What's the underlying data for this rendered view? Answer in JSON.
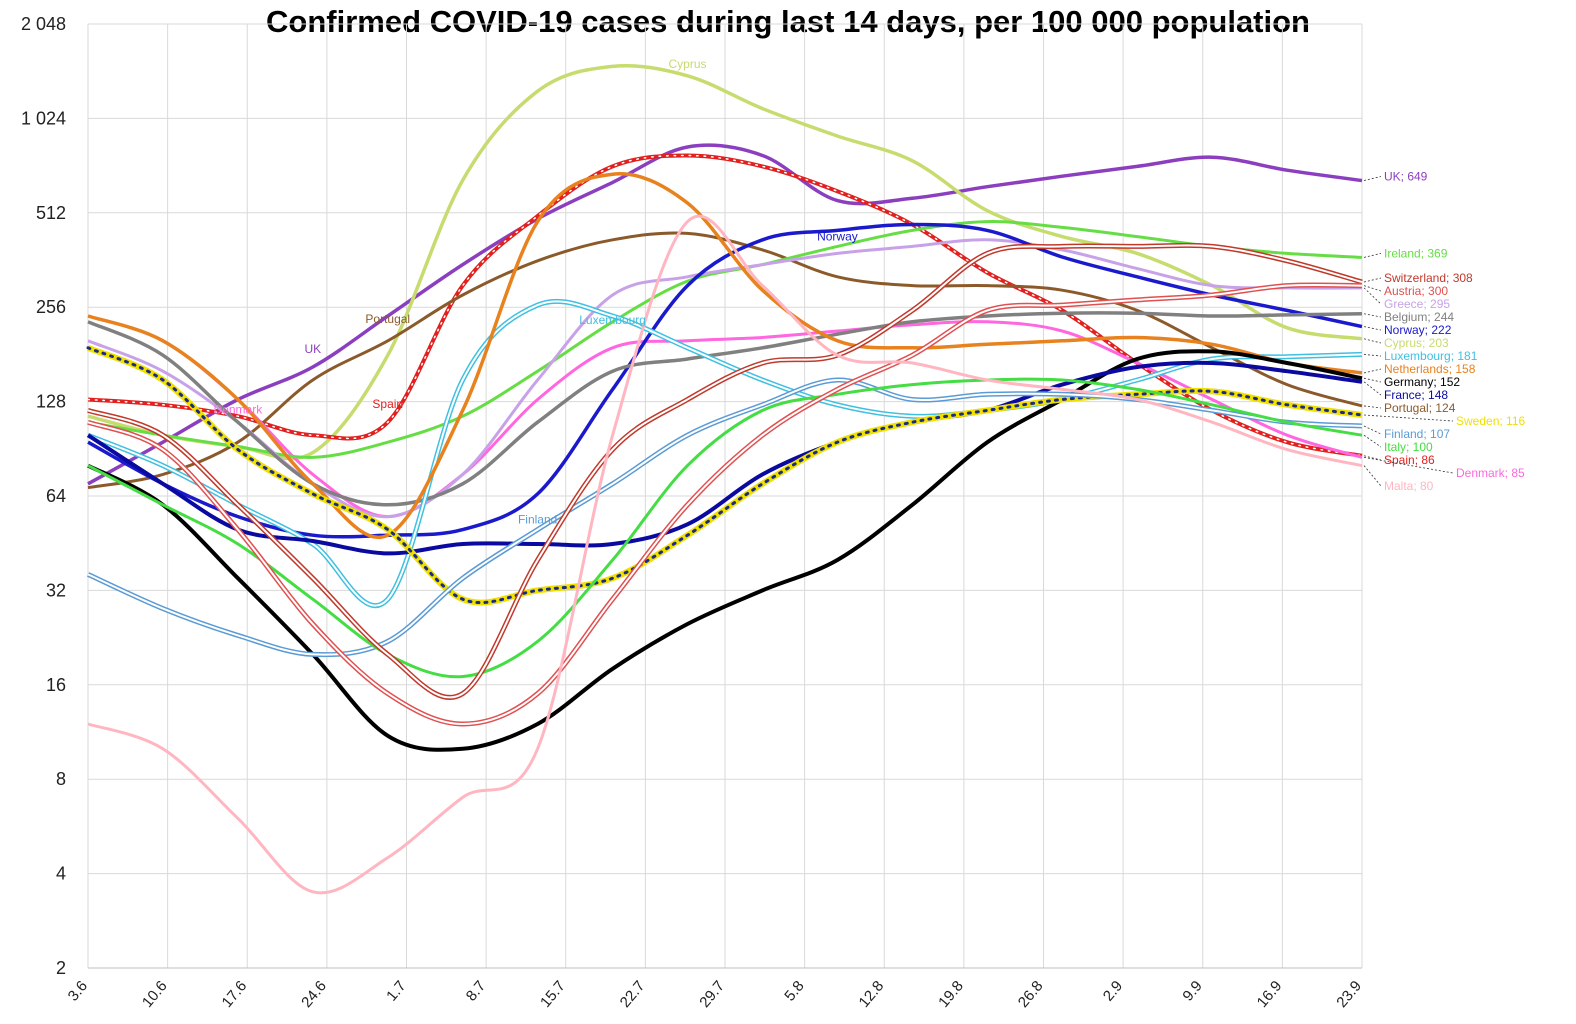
{
  "chart_data": {
    "type": "line",
    "title": "Confirmed COVID-19 cases during last 14 days, per 100 000 population",
    "y_scale": "log2",
    "ylim": [
      2,
      2048
    ],
    "y_ticks": [
      "2",
      "4",
      "8",
      "16",
      "32",
      "64",
      "128",
      "256",
      "512",
      "1 024",
      "2 048"
    ],
    "y_tick_values": [
      2,
      4,
      8,
      16,
      32,
      64,
      128,
      256,
      512,
      1024,
      2048
    ],
    "x_ticks": [
      "3.6",
      "10.6",
      "17.6",
      "24.6",
      "1.7",
      "8.7",
      "15.7",
      "22.7",
      "29.7",
      "5.8",
      "12.8",
      "19.8",
      "26.8",
      "2.9",
      "9.9",
      "16.9",
      "23.9"
    ],
    "grid": true,
    "series": [
      {
        "name": "UK",
        "color": "#8B3FBF",
        "style": "solid",
        "width": 3.5,
        "end_label": "UK; 649",
        "values": [
          70,
          95,
          130,
          165,
          240,
          350,
          490,
          640,
          830,
          780,
          560,
          570,
          620,
          670,
          720,
          770,
          700,
          649
        ]
      },
      {
        "name": "Cyprus",
        "color": "#C6DC6E",
        "style": "solid",
        "width": 3.5,
        "end_label": "Cyprus; 203",
        "values": [
          115,
          100,
          92,
          88,
          180,
          650,
          1250,
          1500,
          1400,
          1100,
          900,
          750,
          520,
          430,
          380,
          300,
          220,
          203
        ]
      },
      {
        "name": "Spain",
        "color": "#E0211F",
        "style": "dotted-red",
        "width": 3.5,
        "end_label": "Spain; 86",
        "values": [
          130,
          125,
          115,
          100,
          110,
          300,
          500,
          720,
          780,
          720,
          600,
          470,
          330,
          250,
          170,
          120,
          95,
          86
        ]
      },
      {
        "name": "Portugal",
        "color": "#8B5A2B",
        "style": "solid",
        "width": 3,
        "end_label": "Portugal; 124",
        "values": [
          68,
          75,
          95,
          150,
          200,
          280,
          360,
          420,
          440,
          390,
          320,
          300,
          300,
          290,
          250,
          190,
          145,
          124
        ]
      },
      {
        "name": "Denmark",
        "color": "#FF66E0",
        "style": "solid",
        "width": 3,
        "end_label": "Denmark; 85",
        "values": [
          240,
          200,
          130,
          75,
          55,
          75,
          130,
          190,
          200,
          205,
          215,
          225,
          230,
          215,
          170,
          130,
          100,
          85
        ]
      },
      {
        "name": "Ireland",
        "color": "#66DD44",
        "style": "solid",
        "width": 3,
        "end_label": "Ireland; 369",
        "values": [
          110,
          100,
          92,
          85,
          95,
          115,
          160,
          230,
          310,
          350,
          400,
          450,
          480,
          460,
          430,
          400,
          380,
          369
        ]
      },
      {
        "name": "Greece",
        "color": "#C8A2E8",
        "style": "solid",
        "width": 3,
        "end_label": "Greece; 295",
        "values": [
          200,
          160,
          110,
          70,
          55,
          75,
          150,
          280,
          320,
          350,
          380,
          400,
          420,
          390,
          340,
          300,
          295,
          295
        ]
      },
      {
        "name": "Norway",
        "color": "#1A1ACC",
        "style": "solid",
        "width": 3.5,
        "end_label": "Norway; 222",
        "values": [
          95,
          70,
          55,
          48,
          48,
          50,
          65,
          140,
          300,
          420,
          450,
          470,
          450,
          370,
          320,
          280,
          250,
          222
        ]
      },
      {
        "name": "Belgium",
        "color": "#808080",
        "style": "solid",
        "width": 3.5,
        "end_label": "Belgium; 244",
        "values": [
          230,
          180,
          110,
          70,
          60,
          70,
          110,
          160,
          175,
          190,
          210,
          230,
          240,
          245,
          245,
          240,
          242,
          244
        ]
      },
      {
        "name": "Luxembourg",
        "color": "#40C0E0",
        "style": "double",
        "width": 1.5,
        "end_label": "Luxembourg; 181",
        "values": [
          100,
          80,
          60,
          45,
          30,
          150,
          260,
          240,
          190,
          150,
          125,
          115,
          120,
          130,
          150,
          175,
          178,
          181
        ]
      },
      {
        "name": "Netherlands",
        "color": "#E8821E",
        "style": "solid",
        "width": 3.5,
        "end_label": "Netherlands; 158",
        "values": [
          240,
          200,
          130,
          70,
          48,
          120,
          480,
          680,
          550,
          290,
          200,
          190,
          195,
          200,
          205,
          195,
          170,
          158
        ]
      },
      {
        "name": "Germany",
        "color": "#000000",
        "style": "solid",
        "width": 4,
        "end_label": "Germany; 152",
        "values": [
          80,
          60,
          35,
          20,
          11,
          10,
          12,
          18,
          25,
          32,
          40,
          60,
          95,
          130,
          175,
          185,
          170,
          152
        ]
      },
      {
        "name": "France",
        "color": "#0A0AA0",
        "style": "solid",
        "width": 4,
        "end_label": "France; 148",
        "values": [
          100,
          70,
          50,
          46,
          42,
          45,
          45,
          45,
          52,
          75,
          95,
          110,
          120,
          145,
          165,
          170,
          160,
          148
        ]
      },
      {
        "name": "Sweden",
        "color": "#F0E000",
        "style": "sweden",
        "width": 5,
        "end_label": "Sweden; 116",
        "values": [
          190,
          150,
          90,
          65,
          50,
          30,
          32,
          35,
          48,
          70,
          95,
          110,
          120,
          130,
          135,
          138,
          125,
          116
        ]
      },
      {
        "name": "Finland",
        "color": "#5B9BD5",
        "style": "double",
        "width": 1.5,
        "end_label": "Finland; 107",
        "values": [
          36,
          28,
          23,
          20,
          22,
          35,
          50,
          70,
          100,
          125,
          150,
          130,
          135,
          135,
          130,
          120,
          110,
          107
        ]
      },
      {
        "name": "Italy",
        "color": "#44DD44",
        "style": "solid",
        "width": 3,
        "end_label": "Italy; 100",
        "values": [
          80,
          60,
          45,
          30,
          20,
          17,
          22,
          40,
          80,
          120,
          135,
          145,
          150,
          150,
          140,
          125,
          110,
          100
        ]
      },
      {
        "name": "Switzerland",
        "color": "#C0392B",
        "style": "double",
        "width": 1.5,
        "end_label": "Switzerland; 308",
        "values": [
          120,
          100,
          60,
          35,
          20,
          15,
          40,
          90,
          130,
          170,
          180,
          250,
          380,
          400,
          400,
          400,
          360,
          308
        ]
      },
      {
        "name": "Austria",
        "color": "#E05050",
        "style": "double",
        "width": 1.5,
        "end_label": "Austria; 300",
        "values": [
          110,
          90,
          50,
          25,
          15,
          12,
          15,
          30,
          60,
          100,
          140,
          180,
          250,
          260,
          270,
          280,
          300,
          300
        ]
      },
      {
        "name": "Malta",
        "color": "#FFB6C1",
        "style": "solid",
        "width": 3,
        "end_label": "Malta; 80",
        "values": [
          12,
          10,
          6,
          3.5,
          4.5,
          7,
          10,
          100,
          480,
          300,
          180,
          170,
          150,
          140,
          130,
          110,
          90,
          80
        ]
      }
    ],
    "inline_labels": [
      "UK",
      "Cyprus",
      "Spain",
      "Portugal",
      "Denmark",
      "Luxembourg",
      "Finland",
      "Norway"
    ]
  }
}
